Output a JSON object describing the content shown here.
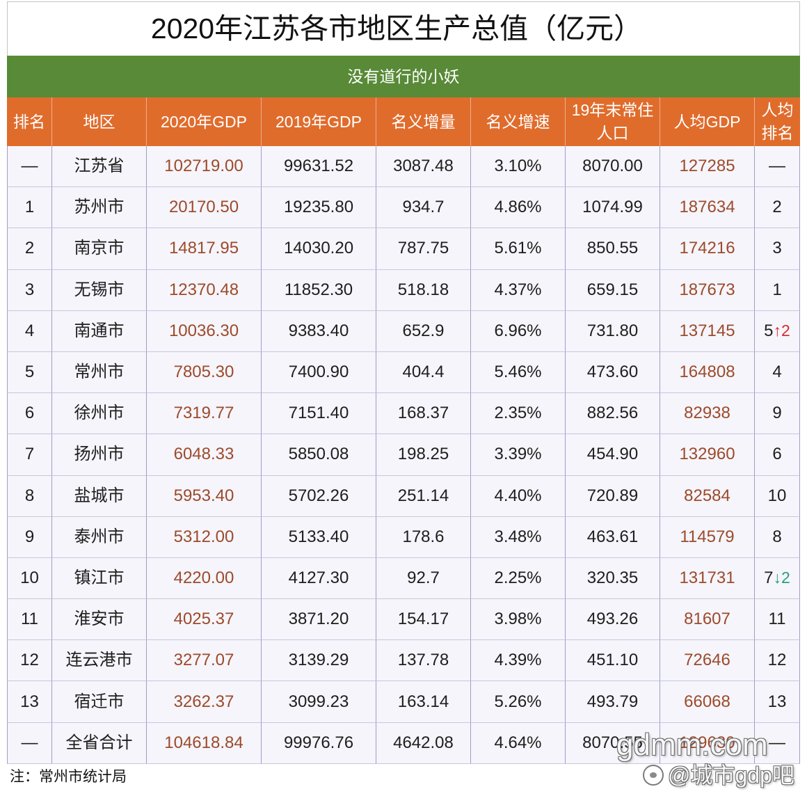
{
  "colors": {
    "green_bar": "#588a37",
    "header_orange": "#e06c2c",
    "gdp_highlight_text": "#9d4a2a",
    "rank_up": "#d82c2c",
    "rank_down": "#26a07c",
    "grid_line": "#a39cc8",
    "row_line": "#c9c6de",
    "row_background": "#f5f5fb"
  },
  "banner": {
    "text": "没有道行的小妖"
  },
  "chart_data": {
    "type": "table",
    "title": "2020年江苏各市地区生产总值（亿元）",
    "columns": [
      "排名",
      "地区",
      "2020年GDP",
      "2019年GDP",
      "名义增量",
      "名义增速",
      "19年末常住\n人口",
      "人均GDP",
      "人均\n排名"
    ],
    "rows": [
      {
        "rank": "—",
        "region": "江苏省",
        "gdp_2020": "102719.00",
        "gdp_2019": "99631.52",
        "nominal_increase": "3087.48",
        "nominal_growth": "3.10%",
        "population_end_2019": "8070.00",
        "per_capita_gdp": "127285",
        "per_capita_rank": "—"
      },
      {
        "rank": "1",
        "region": "苏州市",
        "gdp_2020": "20170.50",
        "gdp_2019": "19235.80",
        "nominal_increase": "934.7",
        "nominal_growth": "4.86%",
        "population_end_2019": "1074.99",
        "per_capita_gdp": "187634",
        "per_capita_rank": "2"
      },
      {
        "rank": "2",
        "region": "南京市",
        "gdp_2020": "14817.95",
        "gdp_2019": "14030.20",
        "nominal_increase": "787.75",
        "nominal_growth": "5.61%",
        "population_end_2019": "850.55",
        "per_capita_gdp": "174216",
        "per_capita_rank": "3"
      },
      {
        "rank": "3",
        "region": "无锡市",
        "gdp_2020": "12370.48",
        "gdp_2019": "11852.30",
        "nominal_increase": "518.18",
        "nominal_growth": "4.37%",
        "population_end_2019": "659.15",
        "per_capita_gdp": "187673",
        "per_capita_rank": "1"
      },
      {
        "rank": "4",
        "region": "南通市",
        "gdp_2020": "10036.30",
        "gdp_2019": "9383.40",
        "nominal_increase": "652.9",
        "nominal_growth": "6.96%",
        "population_end_2019": "731.80",
        "per_capita_gdp": "137145",
        "per_capita_rank": "5",
        "per_capita_rank_change": "↑2"
      },
      {
        "rank": "5",
        "region": "常州市",
        "gdp_2020": "7805.30",
        "gdp_2019": "7400.90",
        "nominal_increase": "404.4",
        "nominal_growth": "5.46%",
        "population_end_2019": "473.60",
        "per_capita_gdp": "164808",
        "per_capita_rank": "4"
      },
      {
        "rank": "6",
        "region": "徐州市",
        "gdp_2020": "7319.77",
        "gdp_2019": "7151.40",
        "nominal_increase": "168.37",
        "nominal_growth": "2.35%",
        "population_end_2019": "882.56",
        "per_capita_gdp": "82938",
        "per_capita_rank": "9"
      },
      {
        "rank": "7",
        "region": "扬州市",
        "gdp_2020": "6048.33",
        "gdp_2019": "5850.08",
        "nominal_increase": "198.25",
        "nominal_growth": "3.39%",
        "population_end_2019": "454.90",
        "per_capita_gdp": "132960",
        "per_capita_rank": "6"
      },
      {
        "rank": "8",
        "region": "盐城市",
        "gdp_2020": "5953.40",
        "gdp_2019": "5702.26",
        "nominal_increase": "251.14",
        "nominal_growth": "4.40%",
        "population_end_2019": "720.89",
        "per_capita_gdp": "82584",
        "per_capita_rank": "10"
      },
      {
        "rank": "9",
        "region": "泰州市",
        "gdp_2020": "5312.00",
        "gdp_2019": "5133.40",
        "nominal_increase": "178.6",
        "nominal_growth": "3.48%",
        "population_end_2019": "463.61",
        "per_capita_gdp": "114579",
        "per_capita_rank": "8"
      },
      {
        "rank": "10",
        "region": "镇江市",
        "gdp_2020": "4220.00",
        "gdp_2019": "4127.30",
        "nominal_increase": "92.7",
        "nominal_growth": "2.25%",
        "population_end_2019": "320.35",
        "per_capita_gdp": "131731",
        "per_capita_rank": "7",
        "per_capita_rank_change": "↓2"
      },
      {
        "rank": "11",
        "region": "淮安市",
        "gdp_2020": "4025.37",
        "gdp_2019": "3871.20",
        "nominal_increase": "154.17",
        "nominal_growth": "3.98%",
        "population_end_2019": "493.26",
        "per_capita_gdp": "81607",
        "per_capita_rank": "11"
      },
      {
        "rank": "12",
        "region": "连云港市",
        "gdp_2020": "3277.07",
        "gdp_2019": "3139.29",
        "nominal_increase": "137.78",
        "nominal_growth": "4.39%",
        "population_end_2019": "451.10",
        "per_capita_gdp": "72646",
        "per_capita_rank": "12"
      },
      {
        "rank": "13",
        "region": "宿迁市",
        "gdp_2020": "3262.37",
        "gdp_2019": "3099.23",
        "nominal_increase": "163.14",
        "nominal_growth": "5.26%",
        "population_end_2019": "493.79",
        "per_capita_gdp": "66068",
        "per_capita_rank": "13"
      },
      {
        "rank": "—",
        "region": "全省合计",
        "gdp_2020": "104618.84",
        "gdp_2019": "99976.76",
        "nominal_increase": "4642.08",
        "nominal_growth": "4.64%",
        "population_end_2019": "8070.55",
        "per_capita_gdp": "129630",
        "per_capita_rank": "—"
      }
    ]
  },
  "footer_note": "注：常州市统计局",
  "watermark": {
    "site": "gdmm.com",
    "handle": "@城市gdp吧",
    "icon": "tieba-logo-icon"
  }
}
